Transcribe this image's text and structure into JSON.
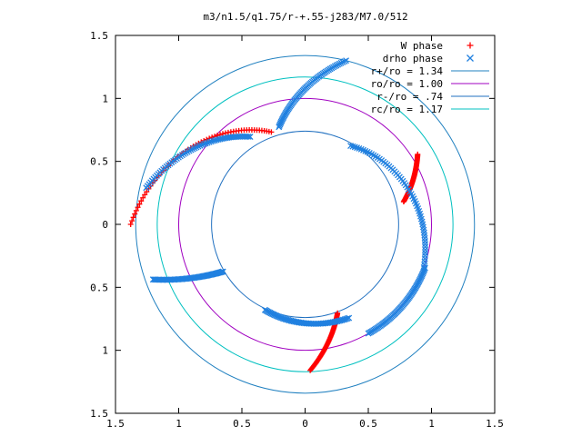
{
  "chart_data": {
    "type": "scatter",
    "title": "m3/n1.5/q1.75/r-+.55-j283/M7.0/512",
    "xlabel": "",
    "ylabel": "",
    "xlim": [
      -1.5,
      1.5
    ],
    "ylim": [
      -1.5,
      1.5
    ],
    "grid": false,
    "legend_position": "top-right",
    "x_ticks": [
      -1.5,
      -1,
      -0.5,
      0,
      0.5,
      1,
      1.5
    ],
    "x_tick_labels": [
      "1.5",
      "1",
      "0.5",
      "0",
      "0.5",
      "1",
      "1.5"
    ],
    "y_ticks": [
      1.5,
      1,
      0.5,
      0,
      -0.5,
      -1,
      -1.5
    ],
    "y_tick_labels": [
      "1.5",
      "1",
      "0.5",
      "0",
      "0.5",
      "1",
      "1.5"
    ],
    "series": [
      {
        "name": "W phase",
        "marker": "plus",
        "color": "#ff0000",
        "arcs": [
          {
            "r": [
              1.05,
              0.8
            ],
            "theta": [
              32,
              13
            ]
          },
          {
            "r": [
              1.38,
              0.78
            ],
            "theta": [
              180,
              110
            ]
          },
          {
            "r": [
              1.16,
              0.75
            ],
            "theta": [
              -88,
              -70
            ]
          }
        ]
      },
      {
        "name": "drho phase",
        "marker": "cross",
        "color": "#2080e0",
        "arcs": [
          {
            "r": [
              0.72,
              1.0
            ],
            "theta": [
              60,
              -20
            ]
          },
          {
            "r": [
              1.01,
              1.0
            ],
            "theta": [
              -20,
              -60
            ]
          },
          {
            "r": [
              1.29,
              0.82
            ],
            "theta": [
              167,
              122
            ]
          },
          {
            "r": [
              0.82,
              0.75
            ],
            "theta": [
              -65,
              -115
            ]
          },
          {
            "r": [
              1.34,
              0.8
            ],
            "theta": [
              76,
              105
            ]
          },
          {
            "r": [
              1.28,
              0.75
            ],
            "theta": [
              -160,
              -150
            ]
          }
        ]
      }
    ],
    "circles": [
      {
        "name": "r+/ro = 1.34",
        "r": 1.34,
        "color": "#2080c0"
      },
      {
        "name": "ro/ro = 1.00",
        "r": 1.0,
        "color": "#a000c0"
      },
      {
        "name": "r-/ro = .74",
        "r": 0.74,
        "color": "#2070c0"
      },
      {
        "name": "rc/ro = 1.17",
        "r": 1.17,
        "color": "#00c0c0"
      }
    ]
  }
}
